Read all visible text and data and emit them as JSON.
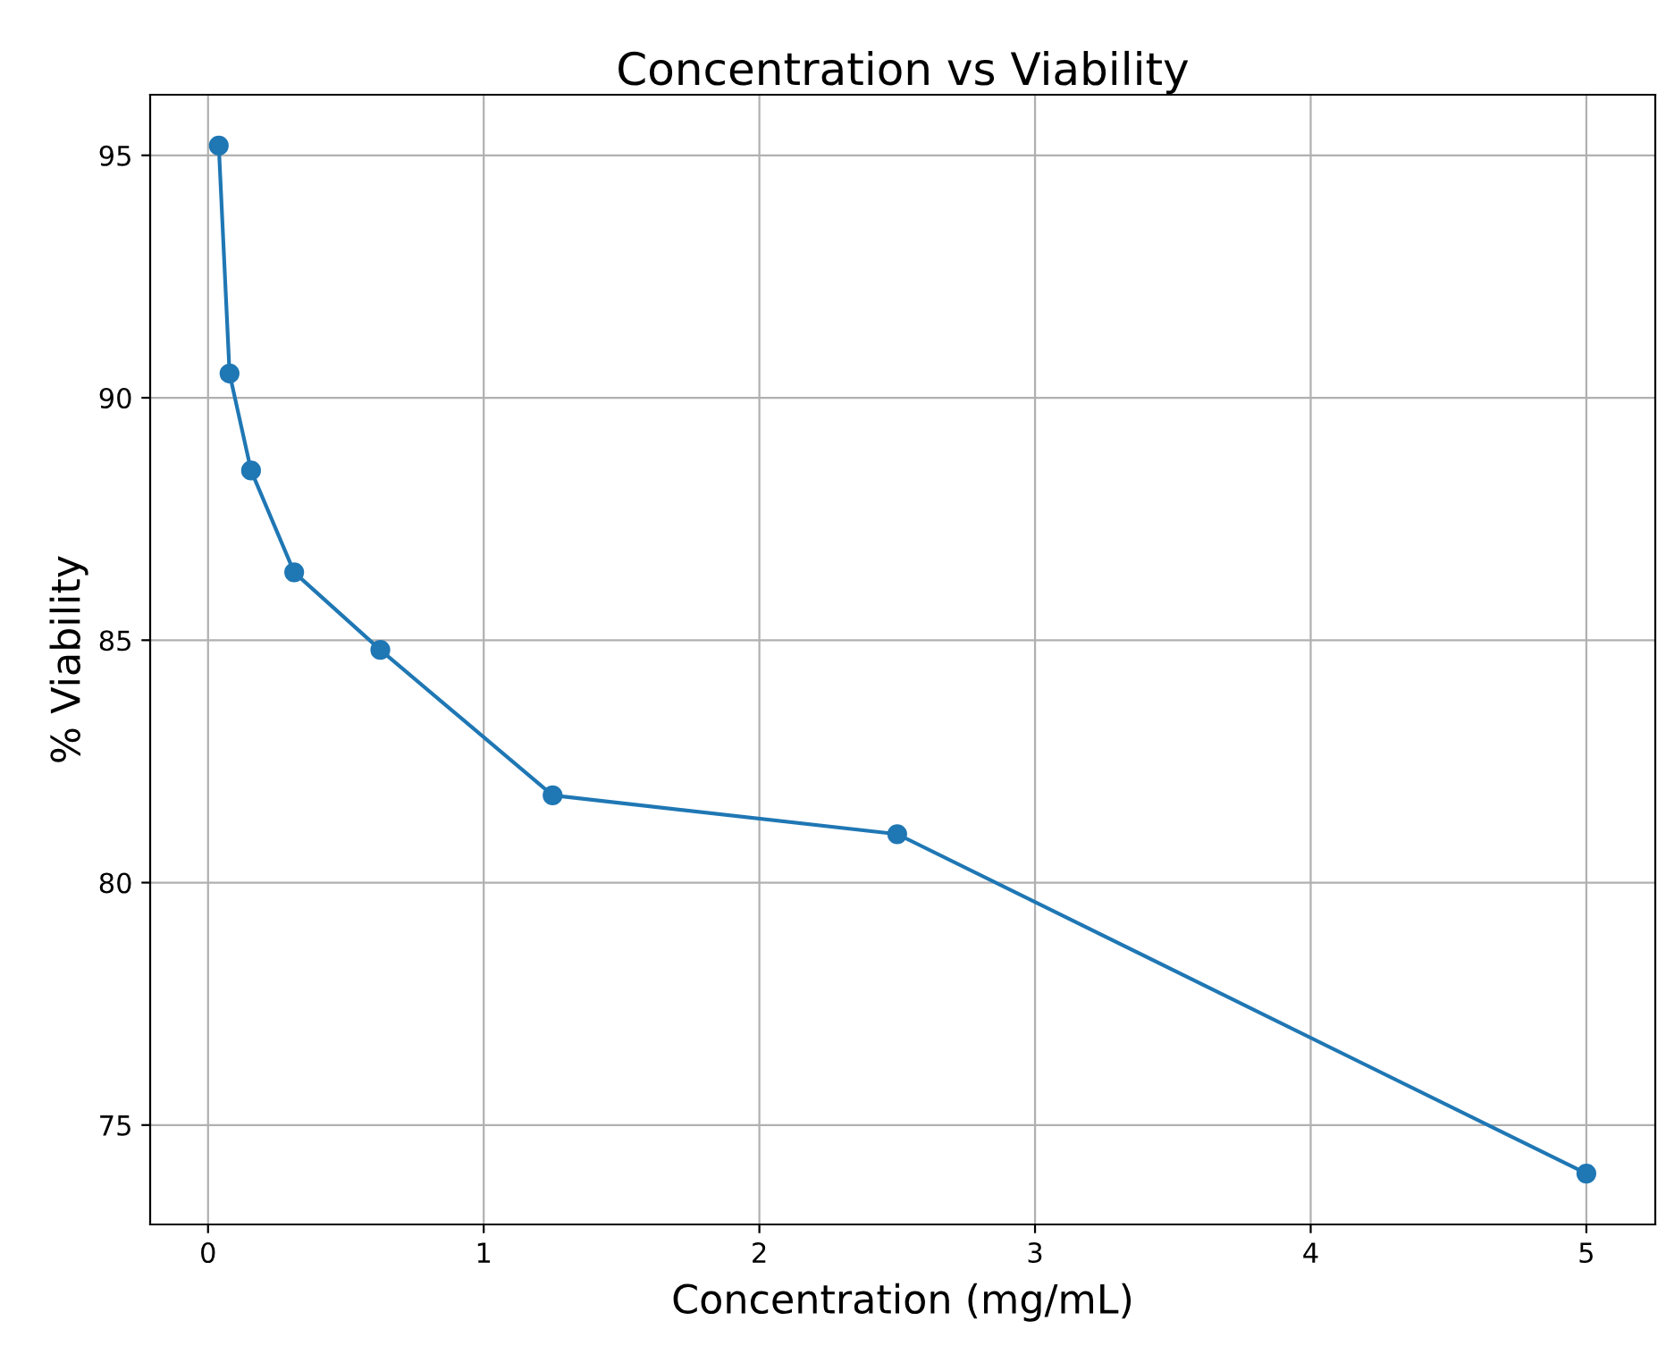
{
  "chart_data": {
    "type": "line",
    "title": "Concentration vs Viability",
    "xlabel": "Concentration (mg/mL)",
    "ylabel": "% Viability",
    "x": [
      0.039,
      0.078,
      0.156,
      0.3125,
      0.625,
      1.25,
      2.5,
      5
    ],
    "series": [
      {
        "color": "#1f77b4",
        "values": [
          95.2,
          90.5,
          88.5,
          86.4,
          84.8,
          81.8,
          81.0,
          74.0
        ]
      }
    ],
    "xlim": [
      -0.21,
      5.25
    ],
    "xticks": [
      0,
      1,
      2,
      3,
      4,
      5
    ],
    "ylim": [
      72.95,
      96.25
    ],
    "yticks": [
      75,
      80,
      85,
      90,
      95
    ],
    "grid": true,
    "marker": "circle",
    "line_style": "solid"
  }
}
